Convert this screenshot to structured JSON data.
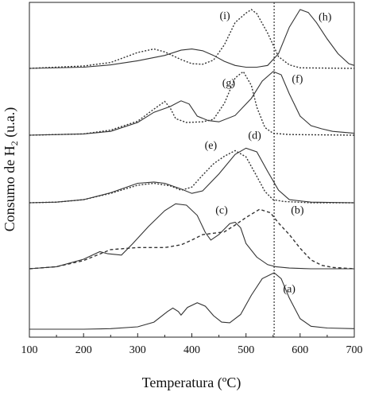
{
  "chart_data": {
    "type": "line",
    "xlabel": "Temperatura (ºC)",
    "ylabel_main": "Consumo de H",
    "ylabel_sub": "2",
    "ylabel_tail": " (u.a.)",
    "xlim": [
      100,
      700
    ],
    "x_ticks": [
      100,
      200,
      300,
      400,
      500,
      600,
      700
    ],
    "x_tick_labels": [
      "100",
      "200",
      "300",
      "400",
      "500",
      "600",
      "700"
    ],
    "reference_line_x": 552,
    "y_ticks_shown": false,
    "grid": false,
    "groups": [
      {
        "series": [
          {
            "name": "(a)",
            "style": "solid",
            "label_at": [
              580,
              0.63
            ],
            "points": [
              [
                100,
                0
              ],
              [
                200,
                0
              ],
              [
                250,
                0.01
              ],
              [
                300,
                0.04
              ],
              [
                330,
                0.12
              ],
              [
                355,
                0.3
              ],
              [
                365,
                0.36
              ],
              [
                375,
                0.3
              ],
              [
                380,
                0.24
              ],
              [
                392,
                0.37
              ],
              [
                410,
                0.45
              ],
              [
                425,
                0.39
              ],
              [
                440,
                0.23
              ],
              [
                455,
                0.12
              ],
              [
                470,
                0.11
              ],
              [
                490,
                0.25
              ],
              [
                510,
                0.58
              ],
              [
                530,
                0.86
              ],
              [
                552,
                0.96
              ],
              [
                565,
                0.86
              ],
              [
                580,
                0.53
              ],
              [
                600,
                0.18
              ],
              [
                620,
                0.05
              ],
              [
                650,
                0.02
              ],
              [
                700,
                0.01
              ]
            ]
          }
        ]
      },
      {
        "series": [
          {
            "name": "(c)",
            "style": "solid",
            "label_at": [
              455,
              0.81
            ],
            "points": [
              [
                100,
                0
              ],
              [
                150,
                0.03
              ],
              [
                200,
                0.14
              ],
              [
                230,
                0.25
              ],
              [
                245,
                0.22
              ],
              [
                270,
                0.2
              ],
              [
                290,
                0.36
              ],
              [
                320,
                0.62
              ],
              [
                350,
                0.85
              ],
              [
                370,
                0.95
              ],
              [
                390,
                0.93
              ],
              [
                410,
                0.78
              ],
              [
                425,
                0.53
              ],
              [
                435,
                0.42
              ],
              [
                450,
                0.5
              ],
              [
                470,
                0.66
              ],
              [
                480,
                0.68
              ],
              [
                490,
                0.6
              ],
              [
                500,
                0.37
              ],
              [
                520,
                0.17
              ],
              [
                540,
                0.06
              ],
              [
                555,
                0.03
              ],
              [
                580,
                0.01
              ],
              [
                620,
                0
              ],
              [
                700,
                0
              ]
            ]
          },
          {
            "name": "(b)",
            "style": "dashed",
            "label_at": [
              595,
              0.81
            ],
            "points": [
              [
                100,
                0
              ],
              [
                150,
                0.03
              ],
              [
                200,
                0.12
              ],
              [
                250,
                0.28
              ],
              [
                300,
                0.31
              ],
              [
                350,
                0.31
              ],
              [
                380,
                0.35
              ],
              [
                400,
                0.42
              ],
              [
                420,
                0.5
              ],
              [
                440,
                0.52
              ],
              [
                460,
                0.54
              ],
              [
                480,
                0.64
              ],
              [
                500,
                0.75
              ],
              [
                525,
                0.87
              ],
              [
                545,
                0.82
              ],
              [
                560,
                0.67
              ],
              [
                580,
                0.5
              ],
              [
                600,
                0.3
              ],
              [
                620,
                0.13
              ],
              [
                640,
                0.05
              ],
              [
                660,
                0.02
              ],
              [
                700,
                0
              ]
            ]
          }
        ]
      },
      {
        "series": [
          {
            "name": "(d)",
            "style": "solid",
            "label_at": [
              516,
              1.02
            ],
            "points": [
              [
                100,
                0
              ],
              [
                150,
                0.01
              ],
              [
                200,
                0.05
              ],
              [
                250,
                0.16
              ],
              [
                300,
                0.31
              ],
              [
                330,
                0.33
              ],
              [
                350,
                0.31
              ],
              [
                380,
                0.22
              ],
              [
                400,
                0.15
              ],
              [
                420,
                0.19
              ],
              [
                450,
                0.46
              ],
              [
                480,
                0.77
              ],
              [
                500,
                0.87
              ],
              [
                520,
                0.81
              ],
              [
                540,
                0.5
              ],
              [
                560,
                0.2
              ],
              [
                580,
                0.05
              ],
              [
                620,
                0.01
              ],
              [
                700,
                0
              ]
            ]
          },
          {
            "name": "(e)",
            "style": "dotted",
            "label_at": [
              435,
              0.86
            ],
            "points": [
              [
                100,
                0
              ],
              [
                150,
                0.01
              ],
              [
                200,
                0.05
              ],
              [
                250,
                0.15
              ],
              [
                300,
                0.28
              ],
              [
                330,
                0.31
              ],
              [
                360,
                0.27
              ],
              [
                380,
                0.2
              ],
              [
                400,
                0.25
              ],
              [
                420,
                0.44
              ],
              [
                440,
                0.62
              ],
              [
                460,
                0.74
              ],
              [
                480,
                0.83
              ],
              [
                500,
                0.73
              ],
              [
                520,
                0.42
              ],
              [
                535,
                0.18
              ],
              [
                550,
                0.05
              ],
              [
                570,
                0.02
              ],
              [
                620,
                0
              ],
              [
                700,
                0
              ]
            ]
          }
        ]
      },
      {
        "series": [
          {
            "name": "(f)",
            "style": "solid",
            "label_at": [
              595,
              0.83
            ],
            "points": [
              [
                100,
                0
              ],
              [
                200,
                0.02
              ],
              [
                250,
                0.06
              ],
              [
                300,
                0.2
              ],
              [
                330,
                0.36
              ],
              [
                360,
                0.45
              ],
              [
                380,
                0.54
              ],
              [
                395,
                0.49
              ],
              [
                410,
                0.3
              ],
              [
                430,
                0.23
              ],
              [
                450,
                0.21
              ],
              [
                480,
                0.31
              ],
              [
                510,
                0.58
              ],
              [
                530,
                0.85
              ],
              [
                550,
                1.0
              ],
              [
                565,
                0.95
              ],
              [
                580,
                0.65
              ],
              [
                600,
                0.3
              ],
              [
                620,
                0.15
              ],
              [
                640,
                0.1
              ],
              [
                660,
                0.06
              ],
              [
                700,
                0.03
              ]
            ]
          },
          {
            "name": "(g)",
            "style": "dotted",
            "label_at": [
              468,
              0.77
            ],
            "points": [
              [
                100,
                0
              ],
              [
                200,
                0.02
              ],
              [
                250,
                0.08
              ],
              [
                300,
                0.22
              ],
              [
                330,
                0.41
              ],
              [
                350,
                0.53
              ],
              [
                360,
                0.43
              ],
              [
                370,
                0.26
              ],
              [
                390,
                0.2
              ],
              [
                420,
                0.21
              ],
              [
                440,
                0.25
              ],
              [
                460,
                0.5
              ],
              [
                480,
                0.9
              ],
              [
                495,
                1.0
              ],
              [
                510,
                0.78
              ],
              [
                520,
                0.44
              ],
              [
                535,
                0.12
              ],
              [
                550,
                0.03
              ],
              [
                580,
                0.01
              ],
              [
                700,
                0
              ]
            ]
          }
        ]
      },
      {
        "series": [
          {
            "name": "(h)",
            "style": "solid",
            "label_at": [
              646,
              0.82
            ],
            "points": [
              [
                100,
                0
              ],
              [
                200,
                0.02
              ],
              [
                250,
                0.06
              ],
              [
                300,
                0.13
              ],
              [
                350,
                0.22
              ],
              [
                380,
                0.31
              ],
              [
                400,
                0.33
              ],
              [
                420,
                0.3
              ],
              [
                440,
                0.22
              ],
              [
                460,
                0.12
              ],
              [
                480,
                0.05
              ],
              [
                500,
                0.02
              ],
              [
                520,
                0.02
              ],
              [
                540,
                0.05
              ],
              [
                560,
                0.25
              ],
              [
                580,
                0.7
              ],
              [
                600,
                1.0
              ],
              [
                615,
                0.95
              ],
              [
                630,
                0.78
              ],
              [
                650,
                0.5
              ],
              [
                670,
                0.25
              ],
              [
                690,
                0.08
              ],
              [
                700,
                0.05
              ]
            ]
          },
          {
            "name": "(i)",
            "style": "dotted",
            "label_at": [
              461,
              0.84
            ],
            "points": [
              [
                100,
                0
              ],
              [
                200,
                0.04
              ],
              [
                250,
                0.1
              ],
              [
                300,
                0.27
              ],
              [
                330,
                0.33
              ],
              [
                350,
                0.28
              ],
              [
                380,
                0.15
              ],
              [
                400,
                0.08
              ],
              [
                420,
                0.07
              ],
              [
                440,
                0.14
              ],
              [
                460,
                0.4
              ],
              [
                480,
                0.78
              ],
              [
                500,
                0.94
              ],
              [
                510,
                1.0
              ],
              [
                520,
                0.93
              ],
              [
                540,
                0.6
              ],
              [
                560,
                0.2
              ],
              [
                580,
                0.06
              ],
              [
                600,
                0.01
              ],
              [
                700,
                0
              ]
            ]
          }
        ]
      }
    ]
  }
}
